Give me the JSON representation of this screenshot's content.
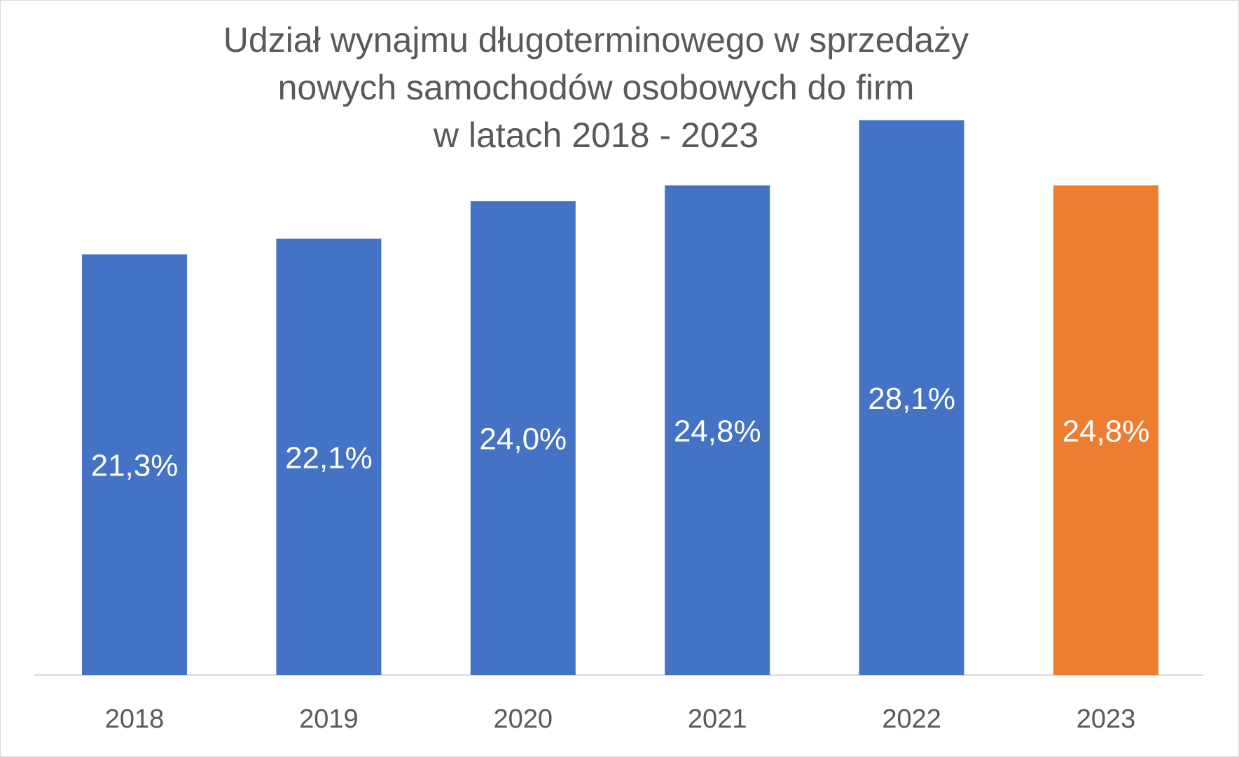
{
  "chart_data": {
    "type": "bar",
    "title_lines": [
      "Udział wynajmu długoterminowego w sprzedaży",
      "nowych samochodów osobowych do firm",
      "w latach 2018 - 2023"
    ],
    "categories": [
      "2018",
      "2019",
      "2020",
      "2021",
      "2022",
      "2023"
    ],
    "values": [
      21.3,
      22.1,
      24.0,
      24.8,
      28.1,
      24.8
    ],
    "value_labels": [
      "21,3%",
      "22,1%",
      "24,0%",
      "24,8%",
      "28,1%",
      "24,8%"
    ],
    "bar_colors": [
      "#4472c4",
      "#4472c4",
      "#4472c4",
      "#4472c4",
      "#4472c4",
      "#ed7d31"
    ],
    "xlabel": "",
    "ylabel": "",
    "ylim": [
      0,
      30
    ],
    "grid": false,
    "legend": "none"
  }
}
